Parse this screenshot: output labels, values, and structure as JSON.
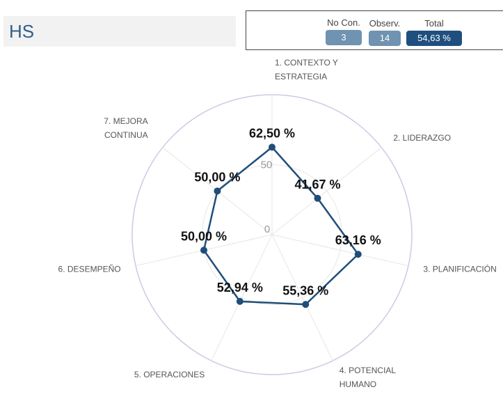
{
  "header": {
    "title": "HS",
    "stats": [
      {
        "label": "No Con.",
        "value": "3",
        "style": "light"
      },
      {
        "label": "Observ.",
        "value": "14",
        "style": "light"
      },
      {
        "label": "Total",
        "value": "54,63 %",
        "style": "dark"
      }
    ]
  },
  "chart_data": {
    "type": "radar",
    "categories": [
      "1. CONTEXTO Y\nESTRATEGIA",
      "2. LIDERAZGO",
      "3. PLANIFICACIÓN",
      "4. POTENCIAL\nHUMANO",
      "5. OPERACIONES",
      "6. DESEMPEÑO",
      "7. MEJORA\nCONTINUA"
    ],
    "values": [
      62.5,
      41.67,
      63.16,
      55.36,
      52.94,
      50.0,
      50.0
    ],
    "value_labels": [
      "62,50 %",
      "41,67 %",
      "63,16 %",
      "55,36 %",
      "52,94 %",
      "50,00 %",
      "50,00 %"
    ],
    "radial_range": [
      0,
      100
    ],
    "radial_tick_labels": [
      "0",
      "50"
    ],
    "colors": {
      "series": "#1f4e79",
      "grid": "#e6e6e6",
      "outer_ring": "#c8cce3"
    }
  }
}
